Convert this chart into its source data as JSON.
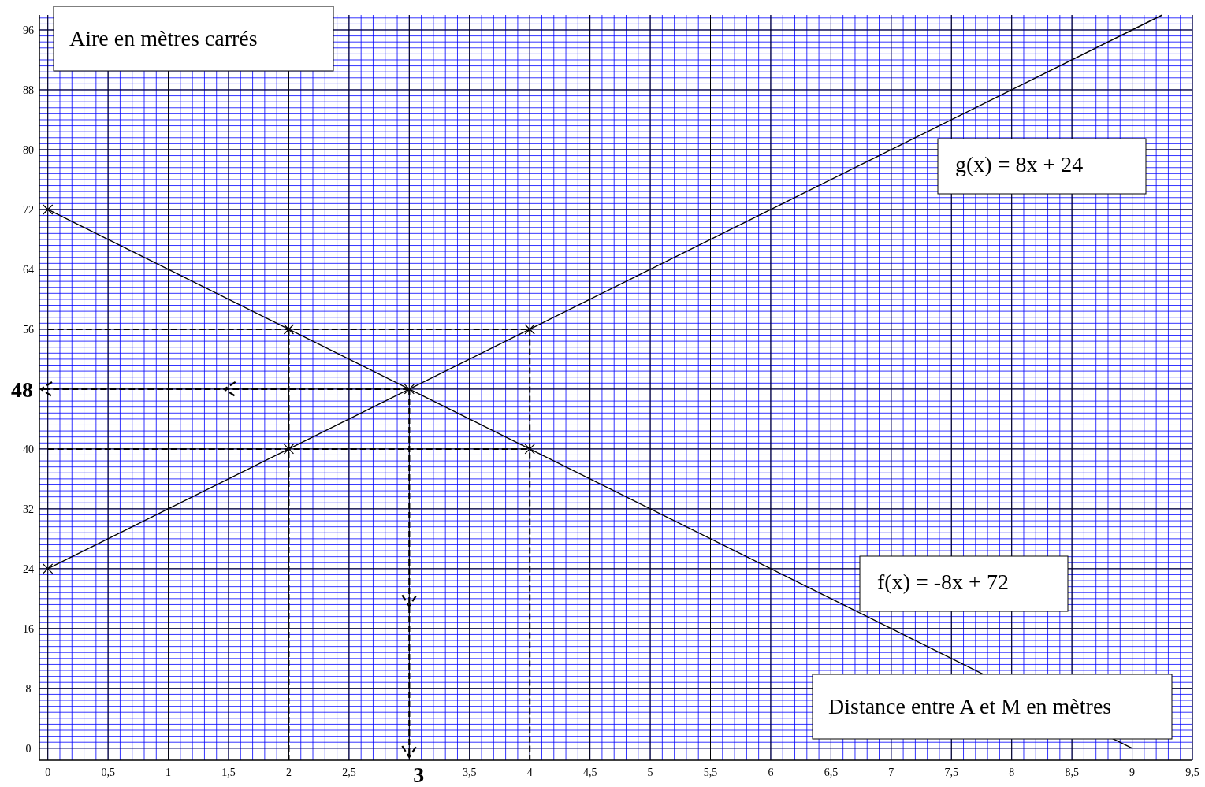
{
  "chart_data": {
    "type": "line",
    "xlabel": "Distance entre A et M en mètres",
    "ylabel": "Aire en mètres carrés",
    "xlim": [
      -0.07,
      9.5
    ],
    "ylim": [
      -1.6,
      98
    ],
    "xticks": [
      {
        "value": 0,
        "label": "0"
      },
      {
        "value": 0.5,
        "label": "0,5"
      },
      {
        "value": 1,
        "label": "1"
      },
      {
        "value": 1.5,
        "label": "1,5"
      },
      {
        "value": 2,
        "label": "2"
      },
      {
        "value": 2.5,
        "label": "2,5"
      },
      {
        "value": 3,
        "label": null
      },
      {
        "value": 3.5,
        "label": "3,5"
      },
      {
        "value": 4,
        "label": "4"
      },
      {
        "value": 4.5,
        "label": "4,5"
      },
      {
        "value": 5,
        "label": "5"
      },
      {
        "value": 5.5,
        "label": "5,5"
      },
      {
        "value": 6,
        "label": "6"
      },
      {
        "value": 6.5,
        "label": "6,5"
      },
      {
        "value": 7,
        "label": "7"
      },
      {
        "value": 7.5,
        "label": "7,5"
      },
      {
        "value": 8,
        "label": "8"
      },
      {
        "value": 8.5,
        "label": "8,5"
      },
      {
        "value": 9,
        "label": "9"
      },
      {
        "value": 9.5,
        "label": "9,5"
      }
    ],
    "yticks": [
      0,
      8,
      16,
      24,
      32,
      40,
      {
        "value": 48,
        "label": null
      },
      56,
      64,
      72,
      80,
      88,
      96
    ],
    "grid": true,
    "marker": "none",
    "line_style": "solid",
    "series": [
      {
        "name": "g(x) = 8x + 24",
        "color": "#000000",
        "x": [
          0,
          9.25
        ],
        "values": [
          24,
          98
        ]
      },
      {
        "name": "f(x) = -8x + 72",
        "color": "#000000",
        "x": [
          0,
          9
        ],
        "values": [
          72,
          0
        ]
      },
      {
        "type": "scatter",
        "marker": "cross",
        "color": "#000000",
        "x": [
          0,
          0,
          2,
          2,
          3,
          4,
          4
        ],
        "values": [
          72,
          24,
          56,
          40,
          48,
          56,
          40
        ]
      },
      {
        "color": "#000000",
        "line_style": "dashed",
        "x": [
          0,
          4,
          4
        ],
        "values": [
          56,
          56,
          -1.6
        ]
      },
      {
        "color": "#000000",
        "line_style": "dashed",
        "x": [
          0,
          4
        ],
        "values": [
          40,
          40
        ]
      },
      {
        "color": "#000000",
        "line_style": "dashed",
        "x": [
          2,
          2
        ],
        "values": [
          56,
          -1.6
        ]
      }
    ],
    "annotations": [
      {
        "text": "48",
        "x": 3,
        "y": 48
      },
      {
        "text": "3",
        "x": 3,
        "y": 48
      }
    ]
  }
}
